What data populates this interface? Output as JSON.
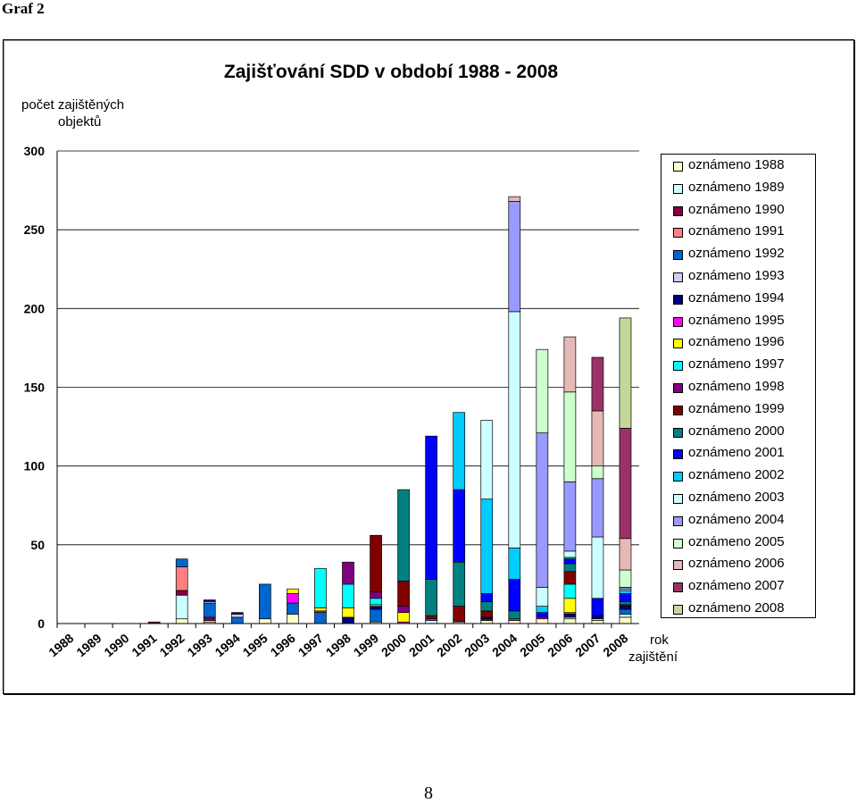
{
  "heading": "Graf 2",
  "page_number": "8",
  "chart_data": {
    "type": "bar",
    "stacked": true,
    "title": "Zajišťování SDD v období 1988 - 2008",
    "ylabel": "počet zajištěných objektů",
    "xlabel": "rok zajištění",
    "ylim": [
      0,
      300
    ],
    "yticks": [
      0,
      50,
      100,
      150,
      200,
      250,
      300
    ],
    "grid": true,
    "legend_position": "right",
    "categories": [
      "1988",
      "1989",
      "1990",
      "1991",
      "1992",
      "1993",
      "1994",
      "1995",
      "1996",
      "1997",
      "1998",
      "1999",
      "2000",
      "2001",
      "2002",
      "2003",
      "2004",
      "2005",
      "2006",
      "2007",
      "2008"
    ],
    "series": [
      {
        "name": "oznámeno 1988",
        "color": "#FFFFCC",
        "values": [
          0,
          0,
          0,
          0,
          3,
          1,
          0,
          3,
          6,
          0,
          0,
          0,
          0,
          0,
          0,
          2,
          2,
          3,
          3,
          2,
          4
        ]
      },
      {
        "name": "oznámeno 1989",
        "color": "#CCFFFF",
        "values": [
          0,
          0,
          0,
          0,
          15,
          1,
          0,
          0,
          0,
          0,
          0,
          1,
          0,
          2,
          1,
          0,
          0,
          0,
          1,
          1,
          2
        ]
      },
      {
        "name": "oznámeno 1990",
        "color": "#800040",
        "values": [
          0,
          0,
          0,
          1,
          3,
          2,
          0,
          0,
          0,
          0,
          0,
          0,
          0,
          0,
          0,
          1,
          0,
          0,
          0,
          0,
          0
        ]
      },
      {
        "name": "oznámeno 1991",
        "color": "#FF8080",
        "values": [
          0,
          0,
          0,
          0,
          15,
          0,
          0,
          0,
          0,
          0,
          0,
          0,
          0,
          0,
          0,
          0,
          0,
          0,
          0,
          0,
          0
        ]
      },
      {
        "name": "oznámeno 1992",
        "color": "#0066CC",
        "values": [
          0,
          0,
          0,
          0,
          5,
          9,
          4,
          22,
          7,
          7,
          0,
          8,
          0,
          0,
          0,
          0,
          0,
          0,
          0,
          0,
          3
        ]
      },
      {
        "name": "oznámeno 1993",
        "color": "#CCCCFF",
        "values": [
          0,
          0,
          0,
          0,
          0,
          1,
          2,
          0,
          0,
          0,
          0,
          0,
          0,
          0,
          0,
          0,
          0,
          0,
          0,
          0,
          0
        ]
      },
      {
        "name": "oznámeno 1994",
        "color": "#000080",
        "values": [
          0,
          0,
          0,
          0,
          0,
          1,
          1,
          0,
          0,
          0,
          4,
          2,
          0,
          0,
          0,
          1,
          0,
          0,
          2,
          2,
          2
        ]
      },
      {
        "name": "oznámeno 1995",
        "color": "#FF00FF",
        "values": [
          0,
          0,
          0,
          0,
          0,
          0,
          0,
          0,
          6,
          1,
          0,
          0,
          1,
          1,
          0,
          0,
          1,
          1,
          1,
          0,
          0
        ]
      },
      {
        "name": "oznámeno 1996",
        "color": "#FFFF00",
        "values": [
          0,
          0,
          0,
          0,
          0,
          0,
          0,
          0,
          3,
          2,
          6,
          1,
          6,
          0,
          0,
          0,
          0,
          0,
          9,
          0,
          0
        ]
      },
      {
        "name": "oznámeno 1997",
        "color": "#00FFFF",
        "values": [
          0,
          0,
          0,
          0,
          0,
          0,
          0,
          0,
          0,
          25,
          15,
          4,
          0,
          0,
          0,
          0,
          0,
          0,
          9,
          0,
          0
        ]
      },
      {
        "name": "oznámeno 1998",
        "color": "#800080",
        "values": [
          0,
          0,
          0,
          0,
          0,
          0,
          0,
          0,
          0,
          0,
          14,
          4,
          4,
          0,
          0,
          0,
          0,
          0,
          0,
          0,
          0
        ]
      },
      {
        "name": "oznámeno 1999",
        "color": "#800000",
        "values": [
          0,
          0,
          0,
          0,
          0,
          0,
          0,
          0,
          0,
          0,
          0,
          36,
          16,
          2,
          10,
          4,
          0,
          0,
          8,
          0,
          1
        ]
      },
      {
        "name": "oznámeno 2000",
        "color": "#008080",
        "values": [
          0,
          0,
          0,
          0,
          0,
          0,
          0,
          0,
          0,
          0,
          0,
          0,
          58,
          23,
          28,
          6,
          5,
          0,
          5,
          0,
          2
        ]
      },
      {
        "name": "oznámeno 2001",
        "color": "#0000FF",
        "values": [
          0,
          0,
          0,
          0,
          0,
          0,
          0,
          0,
          0,
          0,
          0,
          0,
          0,
          91,
          46,
          5,
          20,
          3,
          3,
          11,
          5
        ]
      },
      {
        "name": "oznámeno 2002",
        "color": "#00CCFF",
        "values": [
          0,
          0,
          0,
          0,
          0,
          0,
          0,
          0,
          0,
          0,
          0,
          0,
          0,
          0,
          49,
          60,
          20,
          4,
          1,
          0,
          2
        ]
      },
      {
        "name": "oznámeno 2003",
        "color": "#CCFFFF",
        "values": [
          0,
          0,
          0,
          0,
          0,
          0,
          0,
          0,
          0,
          0,
          0,
          0,
          0,
          0,
          0,
          50,
          150,
          12,
          4,
          39,
          1
        ]
      },
      {
        "name": "oznámeno 2004",
        "color": "#9999FF",
        "values": [
          0,
          0,
          0,
          0,
          0,
          0,
          0,
          0,
          0,
          0,
          0,
          0,
          0,
          0,
          0,
          0,
          70,
          98,
          44,
          37,
          1
        ]
      },
      {
        "name": "oznámeno 2005",
        "color": "#CCFFCC",
        "values": [
          0,
          0,
          0,
          0,
          0,
          0,
          0,
          0,
          0,
          0,
          0,
          0,
          0,
          0,
          0,
          0,
          0,
          53,
          57,
          8,
          11
        ]
      },
      {
        "name": "oznámeno 2006",
        "color": "#E6B8B7",
        "values": [
          0,
          0,
          0,
          0,
          0,
          0,
          0,
          0,
          0,
          0,
          0,
          0,
          0,
          0,
          0,
          0,
          3,
          0,
          35,
          35,
          20
        ]
      },
      {
        "name": "oznámeno 2007",
        "color": "#993366",
        "values": [
          0,
          0,
          0,
          0,
          0,
          0,
          0,
          0,
          0,
          0,
          0,
          0,
          0,
          0,
          0,
          0,
          0,
          0,
          0,
          34,
          70
        ]
      },
      {
        "name": "oznámeno 2008",
        "color": "#C4D79B",
        "values": [
          0,
          0,
          0,
          0,
          0,
          0,
          0,
          0,
          0,
          0,
          0,
          0,
          0,
          0,
          0,
          0,
          0,
          0,
          0,
          0,
          70
        ]
      }
    ]
  }
}
